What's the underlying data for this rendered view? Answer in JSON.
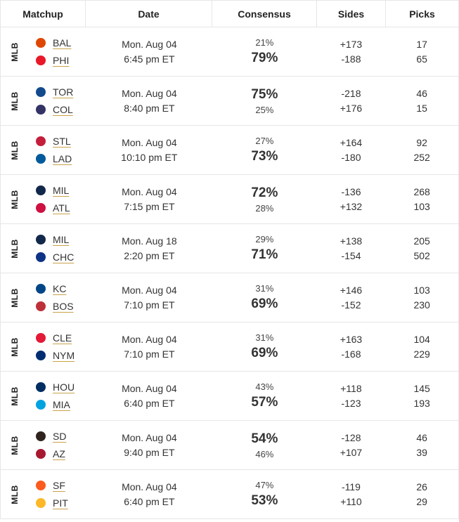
{
  "header": {
    "matchup": "Matchup",
    "date": "Date",
    "consensus": "Consensus",
    "sides": "Sides",
    "picks": "Picks"
  },
  "rows": [
    {
      "league": "MLB",
      "teams": [
        {
          "abbr": "BAL",
          "icon": "orioles-logo-icon",
          "color": "#df4601"
        },
        {
          "abbr": "PHI",
          "icon": "phillies-logo-icon",
          "color": "#e81828"
        }
      ],
      "date": "Mon. Aug 04",
      "time": "6:45 pm ET",
      "consensus": [
        "21%",
        "79%"
      ],
      "big_index": 1,
      "sides": [
        "+173",
        "-188"
      ],
      "picks": [
        "17",
        "65"
      ]
    },
    {
      "league": "MLB",
      "teams": [
        {
          "abbr": "TOR",
          "icon": "blue-jays-logo-icon",
          "color": "#134a8e"
        },
        {
          "abbr": "COL",
          "icon": "rockies-logo-icon",
          "color": "#333366"
        }
      ],
      "date": "Mon. Aug 04",
      "time": "8:40 pm ET",
      "consensus": [
        "75%",
        "25%"
      ],
      "big_index": 0,
      "sides": [
        "-218",
        "+176"
      ],
      "picks": [
        "46",
        "15"
      ]
    },
    {
      "league": "MLB",
      "teams": [
        {
          "abbr": "STL",
          "icon": "cardinals-logo-icon",
          "color": "#c41e3a"
        },
        {
          "abbr": "LAD",
          "icon": "dodgers-logo-icon",
          "color": "#005a9c"
        }
      ],
      "date": "Mon. Aug 04",
      "time": "10:10 pm ET",
      "consensus": [
        "27%",
        "73%"
      ],
      "big_index": 1,
      "sides": [
        "+164",
        "-180"
      ],
      "picks": [
        "92",
        "252"
      ]
    },
    {
      "league": "MLB",
      "teams": [
        {
          "abbr": "MIL",
          "icon": "brewers-logo-icon",
          "color": "#12284b"
        },
        {
          "abbr": "ATL",
          "icon": "braves-logo-icon",
          "color": "#ce1141"
        }
      ],
      "date": "Mon. Aug 04",
      "time": "7:15 pm ET",
      "consensus": [
        "72%",
        "28%"
      ],
      "big_index": 0,
      "sides": [
        "-136",
        "+132"
      ],
      "picks": [
        "268",
        "103"
      ]
    },
    {
      "league": "MLB",
      "teams": [
        {
          "abbr": "MIL",
          "icon": "brewers-logo-icon",
          "color": "#12284b"
        },
        {
          "abbr": "CHC",
          "icon": "cubs-logo-icon",
          "color": "#0e3386"
        }
      ],
      "date": "Mon. Aug 18",
      "time": "2:20 pm ET",
      "consensus": [
        "29%",
        "71%"
      ],
      "big_index": 1,
      "sides": [
        "+138",
        "-154"
      ],
      "picks": [
        "205",
        "502"
      ]
    },
    {
      "league": "MLB",
      "teams": [
        {
          "abbr": "KC",
          "icon": "royals-logo-icon",
          "color": "#004687"
        },
        {
          "abbr": "BOS",
          "icon": "red-sox-logo-icon",
          "color": "#bd3039"
        }
      ],
      "date": "Mon. Aug 04",
      "time": "7:10 pm ET",
      "consensus": [
        "31%",
        "69%"
      ],
      "big_index": 1,
      "sides": [
        "+146",
        "-152"
      ],
      "picks": [
        "103",
        "230"
      ]
    },
    {
      "league": "MLB",
      "teams": [
        {
          "abbr": "CLE",
          "icon": "guardians-logo-icon",
          "color": "#e31937"
        },
        {
          "abbr": "NYM",
          "icon": "mets-logo-icon",
          "color": "#002d72"
        }
      ],
      "date": "Mon. Aug 04",
      "time": "7:10 pm ET",
      "consensus": [
        "31%",
        "69%"
      ],
      "big_index": 1,
      "sides": [
        "+163",
        "-168"
      ],
      "picks": [
        "104",
        "229"
      ]
    },
    {
      "league": "MLB",
      "teams": [
        {
          "abbr": "HOU",
          "icon": "astros-logo-icon",
          "color": "#002d62"
        },
        {
          "abbr": "MIA",
          "icon": "marlins-logo-icon",
          "color": "#00a3e0"
        }
      ],
      "date": "Mon. Aug 04",
      "time": "6:40 pm ET",
      "consensus": [
        "43%",
        "57%"
      ],
      "big_index": 1,
      "sides": [
        "+118",
        "-123"
      ],
      "picks": [
        "145",
        "193"
      ]
    },
    {
      "league": "MLB",
      "teams": [
        {
          "abbr": "SD",
          "icon": "padres-logo-icon",
          "color": "#2f241d"
        },
        {
          "abbr": "AZ",
          "icon": "diamondbacks-logo-icon",
          "color": "#a71930"
        }
      ],
      "date": "Mon. Aug 04",
      "time": "9:40 pm ET",
      "consensus": [
        "54%",
        "46%"
      ],
      "big_index": 0,
      "sides": [
        "-128",
        "+107"
      ],
      "picks": [
        "46",
        "39"
      ]
    },
    {
      "league": "MLB",
      "teams": [
        {
          "abbr": "SF",
          "icon": "giants-logo-icon",
          "color": "#fd5a1e"
        },
        {
          "abbr": "PIT",
          "icon": "pirates-logo-icon",
          "color": "#fdb827"
        }
      ],
      "date": "Mon. Aug 04",
      "time": "6:40 pm ET",
      "consensus": [
        "47%",
        "53%"
      ],
      "big_index": 1,
      "sides": [
        "-119",
        "+110"
      ],
      "picks": [
        "26",
        "29"
      ]
    }
  ]
}
